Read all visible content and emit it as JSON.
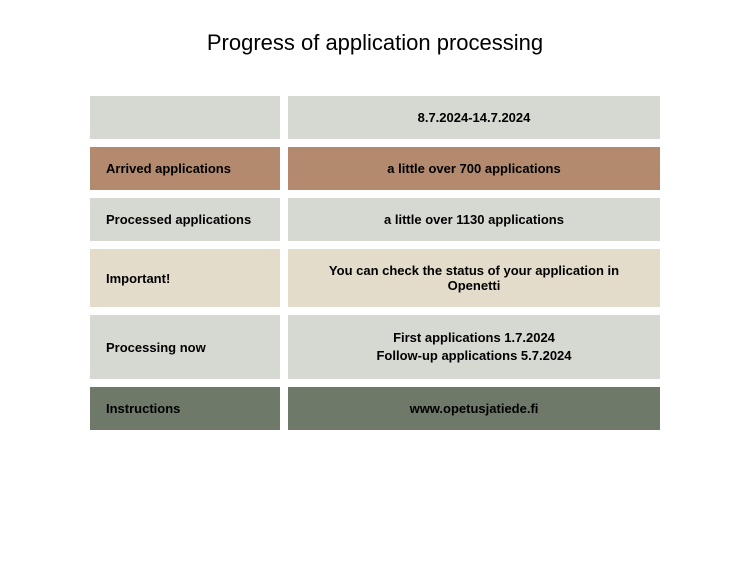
{
  "title": "Progress of application processing",
  "colors": {
    "gray": "#d6d9d2",
    "brown": "#b38a6d",
    "cream": "#e4dcca",
    "olive": "#6e796a",
    "text": "#000000"
  },
  "rows": [
    {
      "left": "",
      "right": "8.7.2024-14.7.2024",
      "left_bg": "#d6d9d2",
      "right_bg": "#d6d9d2"
    },
    {
      "left": "Arrived applications",
      "right": "a little over 700 applications",
      "left_bg": "#b38a6d",
      "right_bg": "#b38a6d"
    },
    {
      "left": "Processed applications",
      "right": "a little over 1130 applications",
      "left_bg": "#d6d9d2",
      "right_bg": "#d6d9d2"
    },
    {
      "left": "Important!",
      "right": "You can check the status of your application in Openetti",
      "left_bg": "#e4dcca",
      "right_bg": "#e4dcca"
    },
    {
      "left": "Processing now",
      "right_line1": "First applications 1.7.2024",
      "right_line2": "Follow-up applications 5.7.2024",
      "left_bg": "#d6d9d2",
      "right_bg": "#d6d9d2",
      "multiline": true
    },
    {
      "left": "Instructions",
      "right": "www.opetusjatiede.fi",
      "left_bg": "#6e796a",
      "right_bg": "#6e796a"
    }
  ]
}
